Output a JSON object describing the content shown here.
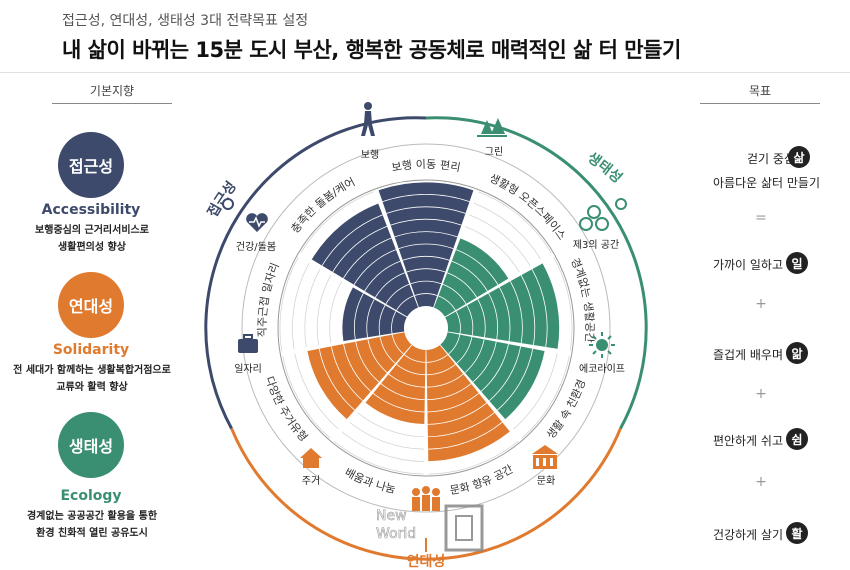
{
  "header": {
    "subtitle": "접근성, 연대성, 생태성 3대 전략목표 설정",
    "title": "내 삶이 바뀌는 15분 도시 부산, 행복한 공동체로 매력적인 삶 터 만들기"
  },
  "left": {
    "heading": "기본지향",
    "pillars": [
      {
        "name": "접근성",
        "en": "Accessibility",
        "desc1": "보행중심의 근거리서비스로",
        "desc2": "생활편의성 향상",
        "color": "#3d4a6b"
      },
      {
        "name": "연대성",
        "en": "Solidarity",
        "desc1": "전 세대가 함께하는 생활복합거점으로",
        "desc2": "교류와 활력 향상",
        "color": "#e07a2e"
      },
      {
        "name": "생태성",
        "en": "Ecology",
        "desc1": "경계없는 공공공간 활용을 통한",
        "desc2": "환경 친화적 열린 공유도시",
        "color": "#3a8f72"
      }
    ]
  },
  "right": {
    "heading": "목표",
    "goals": [
      {
        "text1": "걷기 중심의",
        "text2": "아름다운 삶터 만들기",
        "badge": "삶"
      },
      {
        "text1": "가까이 일하고",
        "badge": "일"
      },
      {
        "text1": "즐겁게 배우며",
        "badge": "앎"
      },
      {
        "text1": "편안하게 쉬고",
        "badge": "쉼"
      },
      {
        "text1": "건강하게 살기",
        "badge": "활"
      }
    ],
    "separators": [
      "=",
      "+",
      "+",
      "+"
    ]
  },
  "diagram": {
    "colors": {
      "navy": "#3d4a6b",
      "orange": "#e07a2e",
      "green": "#3a8f72"
    },
    "arc_labels": {
      "access": "접근성",
      "eco": "생태성",
      "solid": "연대성"
    },
    "icons": [
      {
        "label": "보행",
        "icon": "walking-person-icon"
      },
      {
        "label": "그린",
        "icon": "trees-icon"
      },
      {
        "label": "제3의 공간",
        "icon": "people-group-icon"
      },
      {
        "label": "에코라이프",
        "icon": "sun-icon"
      },
      {
        "label": "문화",
        "icon": "building-icon"
      },
      {
        "label": "주거",
        "icon": "house-icon"
      },
      {
        "label": "일자리",
        "icon": "briefcase-icon"
      },
      {
        "label": "건강/돌봄",
        "icon": "heart-pulse-icon"
      }
    ],
    "sectors": [
      {
        "label": "보행 이동 편리",
        "group": "navy",
        "level": 10
      },
      {
        "label": "생활형 오픈스페이스",
        "group": "green",
        "level": 6
      },
      {
        "label": "경계없는 생활공간",
        "group": "green",
        "level": 9
      },
      {
        "label": "생활 속 친환경",
        "group": "green",
        "level": 8
      },
      {
        "label": "문화 향유 공간",
        "group": "orange",
        "level": 9
      },
      {
        "label": "배움과 나눔",
        "group": "orange",
        "level": 6
      },
      {
        "label": "다양한 주거유형",
        "group": "orange",
        "level": 8
      },
      {
        "label": "직주근접 일자리",
        "group": "navy",
        "level": 5
      },
      {
        "label": "충족한 돌봄/케어",
        "group": "navy",
        "level": 9
      }
    ],
    "max_level": 10
  },
  "watermark": {
    "line1": "New",
    "line2": "World"
  }
}
